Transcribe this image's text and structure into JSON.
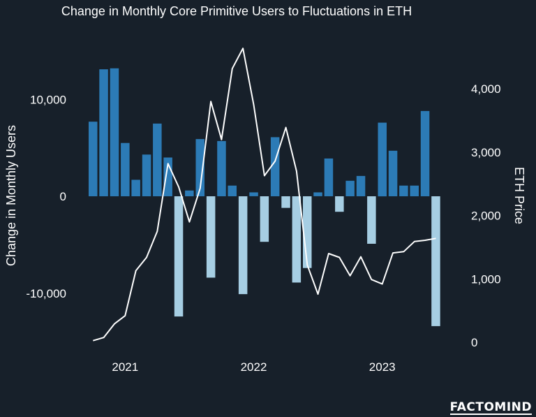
{
  "chart_data": {
    "type": "bar",
    "title": "Change in Monthly Core Primitive Users to Fluctuations in ETH",
    "ylabel": "Change in Monthly Users",
    "y2label": "ETH Price",
    "ylim": [
      -15500,
      16500
    ],
    "y2lim": [
      0,
      4700
    ],
    "yticks": [
      {
        "value": 10000,
        "label": "10,000"
      },
      {
        "value": 0,
        "label": "0"
      },
      {
        "value": -10000,
        "label": "-10,000"
      }
    ],
    "y2ticks": [
      {
        "value": 4000,
        "label": "4,000"
      },
      {
        "value": 3000,
        "label": "3,000"
      },
      {
        "value": 2000,
        "label": "2,000"
      },
      {
        "value": 1000,
        "label": "1,000"
      },
      {
        "value": 0,
        "label": "0"
      }
    ],
    "xticks": [
      {
        "month": 3,
        "label": "2021"
      },
      {
        "month": 15,
        "label": "2022"
      },
      {
        "month": 27,
        "label": "2023"
      }
    ],
    "colors": {
      "positive": "#2c7bb6",
      "negative": "#a6cee3",
      "line": "#ffffff",
      "background": "#17202a",
      "text": "#ffffff"
    },
    "series": [
      {
        "name": "Change in Monthly Users",
        "type": "bar",
        "values": [
          7700,
          13100,
          13200,
          5500,
          1700,
          4300,
          7500,
          4000,
          -12400,
          600,
          5900,
          -8400,
          5700,
          1100,
          -10100,
          400,
          -4700,
          6100,
          -1200,
          -8900,
          -7400,
          400,
          3900,
          -1600,
          1600,
          2100,
          -4900,
          7600,
          4700,
          1100,
          1100,
          8800,
          -13400
        ]
      },
      {
        "name": "ETH Price",
        "type": "line",
        "x": [
          0,
          1,
          2,
          3,
          4,
          5,
          6,
          7,
          8,
          9,
          10,
          11,
          12,
          13,
          14,
          15,
          16,
          17,
          18,
          19,
          20,
          21,
          22,
          23,
          24,
          25,
          26,
          27,
          28,
          29,
          30,
          31,
          32
        ],
        "values": [
          25,
          75,
          290,
          420,
          1130,
          1340,
          1750,
          2820,
          2450,
          1900,
          2430,
          3800,
          3200,
          4320,
          4640,
          3750,
          2630,
          2860,
          3390,
          2700,
          1220,
          760,
          1400,
          1340,
          1050,
          1350,
          990,
          920,
          1410,
          1430,
          1590,
          1610,
          1640
        ]
      }
    ]
  },
  "watermark": "FACTOMIND"
}
